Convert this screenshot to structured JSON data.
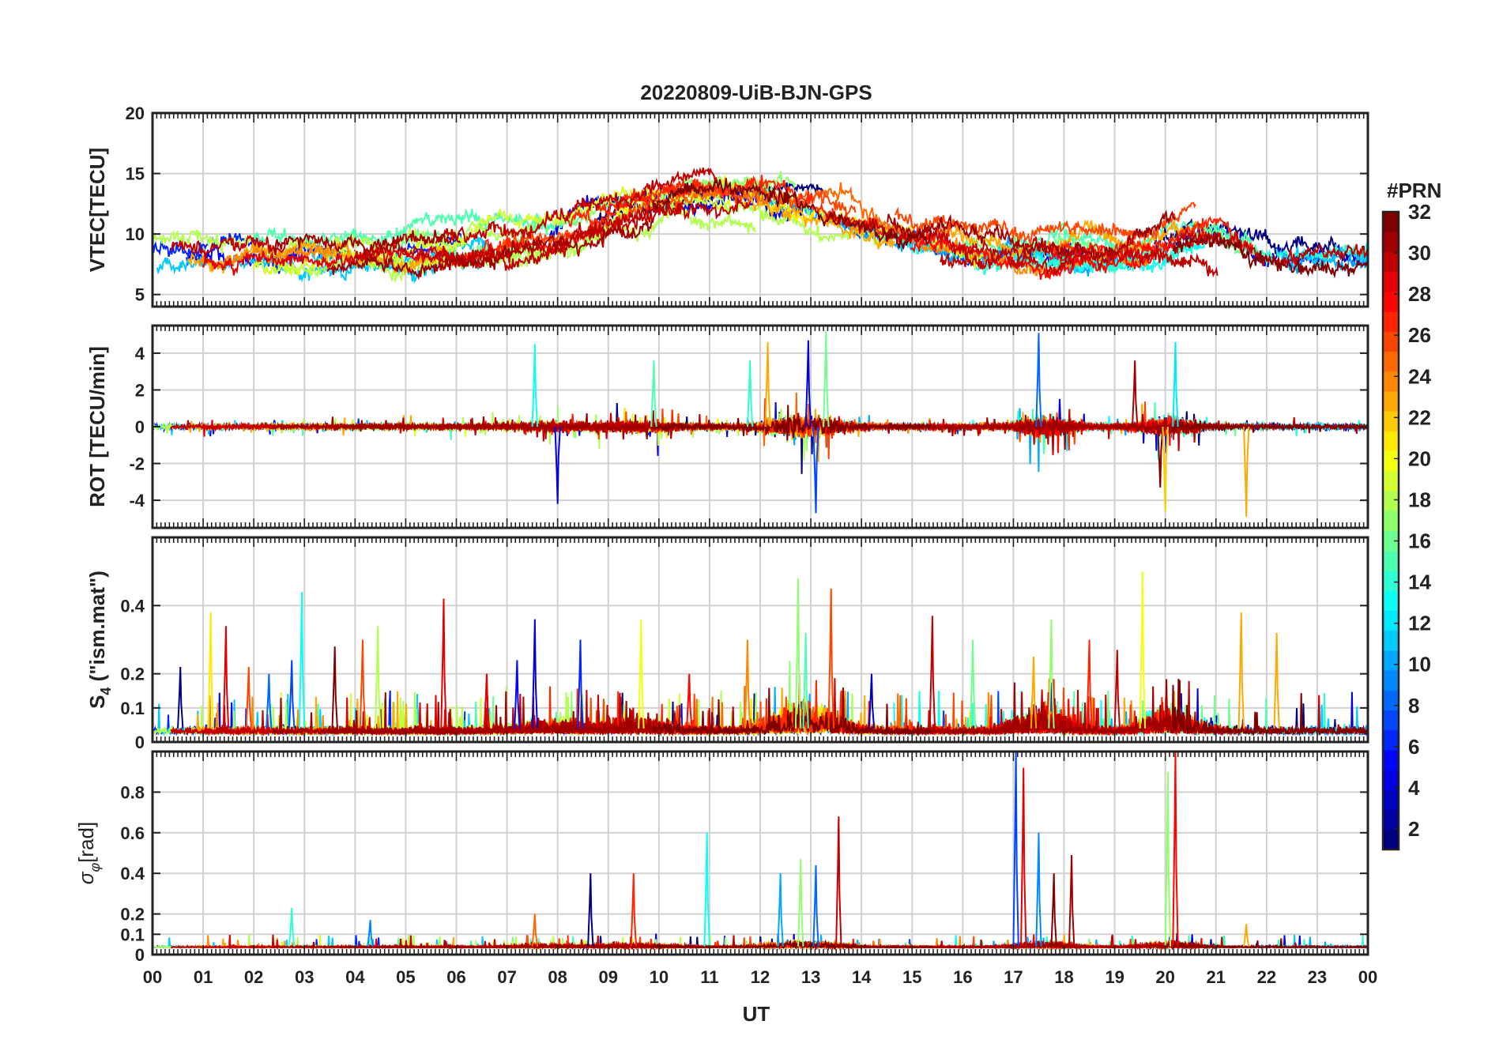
{
  "chart_data": {
    "title": "20220809-UiB-BJN-GPS",
    "type": "line",
    "xlabel": "UT",
    "x_ticks": [
      "00",
      "01",
      "02",
      "03",
      "04",
      "05",
      "06",
      "07",
      "08",
      "09",
      "10",
      "11",
      "12",
      "13",
      "14",
      "15",
      "16",
      "17",
      "18",
      "19",
      "20",
      "21",
      "22",
      "23",
      "00"
    ],
    "xlim": [
      0,
      24
    ],
    "colorbar": {
      "label": "#PRN",
      "colormap": "jet",
      "range": [
        1,
        32
      ],
      "ticks": [
        "2",
        "4",
        "6",
        "8",
        "10",
        "12",
        "14",
        "16",
        "18",
        "20",
        "22",
        "24",
        "26",
        "28",
        "30",
        "32"
      ]
    },
    "panels": [
      {
        "ylabel": "VTEC[TECU]",
        "ylim": [
          4,
          20
        ],
        "yticks": [
          "5",
          "10",
          "15",
          "20"
        ],
        "kind": "vtec",
        "series_summary": "multiple PRN VTEC arcs; ~8 TECU at night rising to ~12-16 TECU around 09-14 UT"
      },
      {
        "ylabel": "ROT [TECU/min]",
        "ylim": [
          -5.5,
          5.5
        ],
        "yticks": [
          "-4",
          "-2",
          "0",
          "2",
          "4"
        ],
        "kind": "rot",
        "series_summary": "ROT fluctuations centred near 0, bursts up to ±4.5 near 12-13 UT, 17-18 UT and 20 UT"
      },
      {
        "ylabel": "S4 (\"ism.mat\")",
        "ylabel_main": "S",
        "ylabel_sub": "4",
        "ylabel_rest": " (\"ism.mat\")",
        "ylim": [
          0,
          0.6
        ],
        "yticks": [
          "0",
          "0.1",
          "0.2",
          "0.4"
        ],
        "kind": "s4",
        "series_summary": "S4 mostly below 0.1 with spikes up to ~0.45 near 13 UT and 19.5 UT"
      },
      {
        "ylabel": "σφ[rad]",
        "ylabel_main": "σ",
        "ylabel_sub": "φ",
        "ylabel_rest": "[rad]",
        "ylim": [
          0,
          1
        ],
        "yticks": [
          "0",
          "0.1",
          "0.2",
          "0.4",
          "0.6",
          "0.8"
        ],
        "kind": "sigphi",
        "series_summary": "phase scintillation near 0.05 rad with peaks ~1 rad at 17.1 UT and 20.2 UT"
      }
    ],
    "events": {
      "s4_spikes": [
        [
          0.55,
          0.22
        ],
        [
          1.15,
          0.38
        ],
        [
          1.45,
          0.34
        ],
        [
          1.9,
          0.22
        ],
        [
          2.3,
          0.2
        ],
        [
          2.75,
          0.24
        ],
        [
          2.95,
          0.44
        ],
        [
          3.6,
          0.28
        ],
        [
          4.15,
          0.3
        ],
        [
          4.45,
          0.34
        ],
        [
          5.75,
          0.42
        ],
        [
          6.6,
          0.2
        ],
        [
          7.2,
          0.24
        ],
        [
          7.55,
          0.36
        ],
        [
          8.45,
          0.3
        ],
        [
          9.65,
          0.36
        ],
        [
          10.6,
          0.2
        ],
        [
          11.75,
          0.3
        ],
        [
          12.75,
          0.48
        ],
        [
          12.9,
          0.32
        ],
        [
          13.4,
          0.45
        ],
        [
          14.2,
          0.2
        ],
        [
          15.4,
          0.37
        ],
        [
          16.2,
          0.3
        ],
        [
          17.4,
          0.25
        ],
        [
          17.75,
          0.36
        ],
        [
          18.5,
          0.3
        ],
        [
          19.05,
          0.27
        ],
        [
          19.55,
          0.5
        ],
        [
          21.5,
          0.38
        ],
        [
          22.2,
          0.32
        ]
      ],
      "sigphi_spikes": [
        [
          2.75,
          0.23
        ],
        [
          4.3,
          0.17
        ],
        [
          7.55,
          0.2
        ],
        [
          8.65,
          0.4
        ],
        [
          9.5,
          0.4
        ],
        [
          10.95,
          0.6
        ],
        [
          12.4,
          0.4
        ],
        [
          12.8,
          0.47
        ],
        [
          13.1,
          0.44
        ],
        [
          13.55,
          0.68
        ],
        [
          17.05,
          1.0
        ],
        [
          17.2,
          0.92
        ],
        [
          17.5,
          0.6
        ],
        [
          17.8,
          0.4
        ],
        [
          18.15,
          0.49
        ],
        [
          20.05,
          0.9
        ],
        [
          20.2,
          1.0
        ],
        [
          21.6,
          0.15
        ]
      ],
      "rot_bursts": [
        [
          7.55,
          4.5
        ],
        [
          9.9,
          3.6
        ],
        [
          11.8,
          3.6
        ],
        [
          12.15,
          4.6
        ],
        [
          12.95,
          4.7
        ],
        [
          13.1,
          -4.7
        ],
        [
          13.3,
          5.2
        ],
        [
          17.5,
          5.1
        ],
        [
          19.4,
          3.6
        ],
        [
          19.9,
          -3.3
        ],
        [
          20.2,
          4.6
        ],
        [
          20.0,
          -4.6
        ],
        [
          21.6,
          -4.9
        ],
        [
          8.0,
          -4.2
        ]
      ]
    }
  }
}
